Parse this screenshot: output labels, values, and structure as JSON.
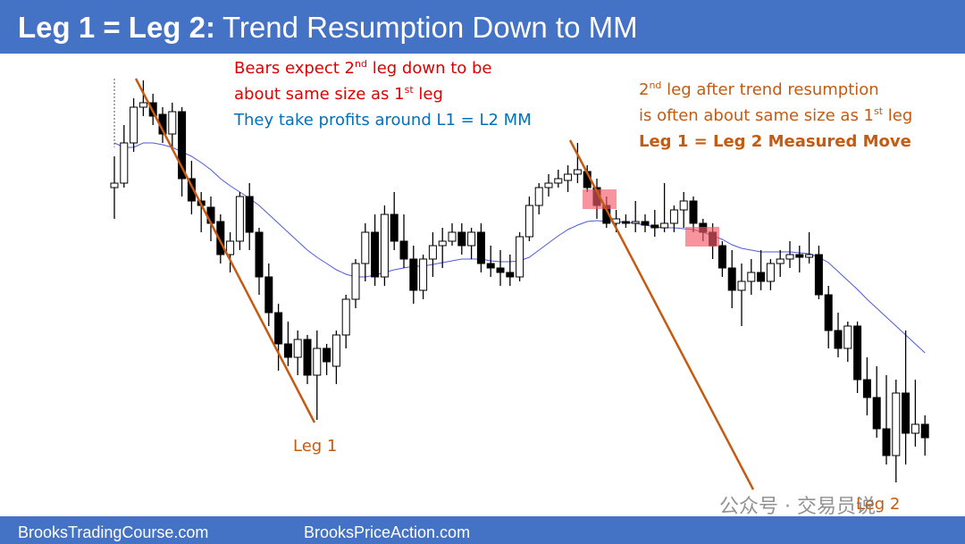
{
  "chart_data": {
    "type": "candlestick",
    "title_bold": "Leg 1 = Leg 2:",
    "title": "Trend Resumption Down to MM",
    "bears_note": [
      [
        "Bears expect 2",
        "nd",
        " leg down to be"
      ],
      [
        "about same size as 1",
        "st",
        " leg"
      ]
    ],
    "profit_note": "They take profits around L1 = L2 MM",
    "resumption_note": [
      [
        "2",
        "nd",
        " leg after trend resumption"
      ],
      [
        "is often about same size as 1",
        "st",
        " leg"
      ]
    ],
    "mm_note": "Leg 1 = Leg 2 Measured Move",
    "leg1_label": "Leg 1",
    "leg2_label": "Leg 2",
    "footer_left": "BrooksTradingCourse.com",
    "footer_right": "BrooksPriceAction.com",
    "watermark": "公众号 · 交易员说",
    "ylim": [
      0,
      500
    ],
    "ohlc": [
      [
        350,
        385,
        315,
        355
      ],
      [
        355,
        420,
        350,
        400
      ],
      [
        400,
        450,
        390,
        440
      ],
      [
        440,
        470,
        430,
        445
      ],
      [
        445,
        455,
        420,
        430
      ],
      [
        432,
        440,
        400,
        410
      ],
      [
        410,
        445,
        395,
        435
      ],
      [
        435,
        440,
        340,
        360
      ],
      [
        360,
        380,
        320,
        335
      ],
      [
        335,
        345,
        300,
        330
      ],
      [
        328,
        340,
        290,
        310
      ],
      [
        312,
        320,
        265,
        275
      ],
      [
        275,
        300,
        255,
        290
      ],
      [
        290,
        345,
        280,
        340
      ],
      [
        340,
        355,
        280,
        300
      ],
      [
        300,
        305,
        230,
        250
      ],
      [
        250,
        265,
        195,
        210
      ],
      [
        210,
        220,
        145,
        175
      ],
      [
        175,
        200,
        150,
        160
      ],
      [
        160,
        190,
        140,
        180
      ],
      [
        180,
        185,
        130,
        140
      ],
      [
        140,
        190,
        90,
        170
      ],
      [
        170,
        175,
        140,
        155
      ],
      [
        150,
        190,
        130,
        185
      ],
      [
        185,
        230,
        170,
        225
      ],
      [
        225,
        270,
        215,
        265
      ],
      [
        265,
        310,
        245,
        300
      ],
      [
        300,
        320,
        240,
        250
      ],
      [
        250,
        330,
        240,
        320
      ],
      [
        320,
        345,
        280,
        290
      ],
      [
        290,
        320,
        260,
        270
      ],
      [
        270,
        285,
        220,
        235
      ],
      [
        235,
        275,
        225,
        270
      ],
      [
        270,
        300,
        250,
        285
      ],
      [
        285,
        305,
        260,
        290
      ],
      [
        290,
        310,
        285,
        300
      ],
      [
        300,
        310,
        275,
        285
      ],
      [
        285,
        305,
        270,
        300
      ],
      [
        300,
        310,
        255,
        265
      ],
      [
        265,
        285,
        250,
        260
      ],
      [
        260,
        280,
        240,
        255
      ],
      [
        255,
        275,
        240,
        250
      ],
      [
        250,
        300,
        245,
        295
      ],
      [
        295,
        340,
        290,
        330
      ],
      [
        330,
        355,
        320,
        350
      ],
      [
        350,
        365,
        340,
        355
      ],
      [
        355,
        370,
        350,
        360
      ],
      [
        358,
        375,
        345,
        365
      ],
      [
        365,
        400,
        355,
        370
      ],
      [
        368,
        375,
        345,
        350
      ],
      [
        350,
        360,
        315,
        330
      ],
      [
        330,
        340,
        305,
        310
      ],
      [
        310,
        325,
        300,
        315
      ],
      [
        312,
        320,
        305,
        310
      ],
      [
        310,
        335,
        300,
        312
      ],
      [
        312,
        320,
        300,
        308
      ],
      [
        308,
        325,
        295,
        305
      ],
      [
        305,
        355,
        300,
        310
      ],
      [
        310,
        330,
        300,
        325
      ],
      [
        325,
        345,
        305,
        335
      ],
      [
        335,
        340,
        300,
        310
      ],
      [
        310,
        315,
        290,
        300
      ],
      [
        300,
        310,
        270,
        285
      ],
      [
        285,
        290,
        250,
        260
      ],
      [
        260,
        280,
        215,
        235
      ],
      [
        235,
        265,
        195,
        245
      ],
      [
        245,
        270,
        230,
        255
      ],
      [
        255,
        280,
        235,
        245
      ],
      [
        245,
        270,
        235,
        265
      ],
      [
        265,
        280,
        250,
        270
      ],
      [
        270,
        290,
        260,
        275
      ],
      [
        275,
        285,
        255,
        272
      ],
      [
        272,
        300,
        265,
        275
      ],
      [
        275,
        285,
        225,
        230
      ],
      [
        230,
        240,
        170,
        190
      ],
      [
        190,
        210,
        160,
        170
      ],
      [
        170,
        200,
        155,
        195
      ],
      [
        195,
        200,
        120,
        135
      ],
      [
        135,
        160,
        95,
        115
      ],
      [
        115,
        150,
        70,
        80
      ],
      [
        80,
        140,
        40,
        50
      ],
      [
        50,
        135,
        20,
        120
      ],
      [
        120,
        190,
        40,
        75
      ],
      [
        75,
        135,
        60,
        85
      ],
      [
        85,
        95,
        50,
        70
      ]
    ],
    "ma": {
      "color": "#4d5bd8",
      "values": [
        400,
        395,
        395,
        400,
        400,
        398,
        395,
        390,
        385,
        378,
        370,
        360,
        352,
        345,
        338,
        330,
        320,
        310,
        300,
        290,
        280,
        272,
        265,
        258,
        253,
        250,
        250,
        252,
        255,
        258,
        260,
        262,
        262,
        264,
        266,
        268,
        270,
        270,
        270,
        268,
        267,
        267,
        268,
        272,
        280,
        288,
        296,
        303,
        308,
        312,
        313,
        312,
        312,
        311,
        310,
        308,
        306,
        305,
        305,
        304,
        303,
        300,
        296,
        292,
        286,
        282,
        280,
        278,
        278,
        278,
        278,
        277,
        276,
        272,
        266,
        256,
        246,
        236,
        225,
        215,
        205,
        195,
        185,
        175,
        165
      ]
    }
  }
}
